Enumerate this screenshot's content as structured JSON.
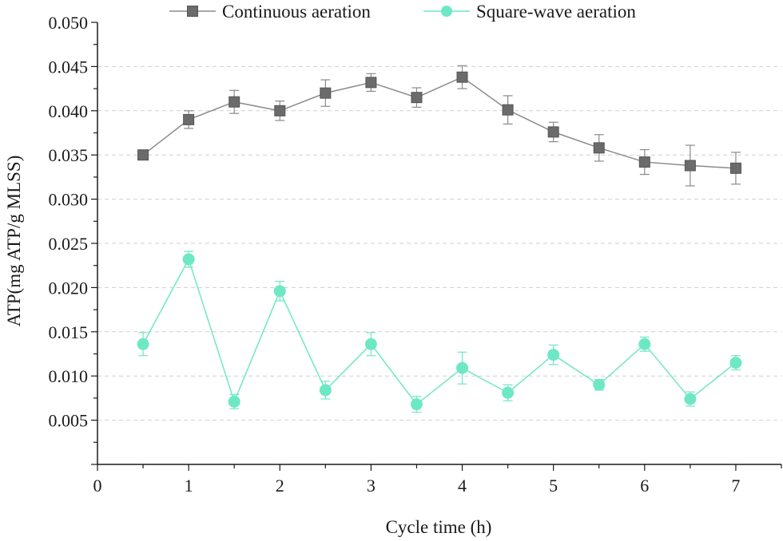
{
  "chart_data": {
    "type": "line",
    "xlabel": "Cycle time (h)",
    "ylabel": "ATP(mg ATP/g MLSS)",
    "xlim": [
      0,
      7.5
    ],
    "ylim": [
      0.0,
      0.05
    ],
    "x_ticks": [
      0,
      1,
      2,
      3,
      4,
      5,
      6,
      7
    ],
    "x_tick_labels": [
      "0",
      "1",
      "2",
      "3",
      "4",
      "5",
      "6",
      "7"
    ],
    "y_ticks": [
      0.005,
      0.01,
      0.015,
      0.02,
      0.025,
      0.03,
      0.035,
      0.04,
      0.045,
      0.05
    ],
    "y_tick_labels": [
      "0.005",
      "0.010",
      "0.015",
      "0.020",
      "0.025",
      "0.030",
      "0.035",
      "0.040",
      "0.045",
      "0.050"
    ],
    "grid": "horizontal dashed",
    "legend_position": "top",
    "x": [
      0.5,
      1,
      1.5,
      2,
      2.5,
      3,
      3.5,
      4,
      4.5,
      5,
      5.5,
      6,
      6.5,
      7
    ],
    "series": [
      {
        "name": "Continuous aeration",
        "marker": "square",
        "color": "#6b6b6b",
        "line_color": "#8a8a8a",
        "values": [
          0.035,
          0.039,
          0.041,
          0.04,
          0.042,
          0.0432,
          0.0415,
          0.0438,
          0.0401,
          0.0376,
          0.0358,
          0.0342,
          0.0338,
          0.0335
        ],
        "errors": [
          0.0005,
          0.001,
          0.0013,
          0.0011,
          0.0015,
          0.001,
          0.0011,
          0.0013,
          0.0016,
          0.0011,
          0.0015,
          0.0014,
          0.0023,
          0.0018
        ]
      },
      {
        "name": "Square-wave aeration",
        "marker": "circle",
        "color": "#6ee8c4",
        "line_color": "#6ee8c4",
        "values": [
          0.0136,
          0.0232,
          0.0071,
          0.0196,
          0.0084,
          0.0136,
          0.0068,
          0.0109,
          0.0081,
          0.0124,
          0.009,
          0.0136,
          0.0074,
          0.0115
        ],
        "errors": [
          0.0013,
          0.0009,
          0.0008,
          0.0011,
          0.001,
          0.0013,
          0.0009,
          0.0018,
          0.0009,
          0.0011,
          0.0006,
          0.0008,
          0.0008,
          0.0008
        ]
      }
    ]
  }
}
